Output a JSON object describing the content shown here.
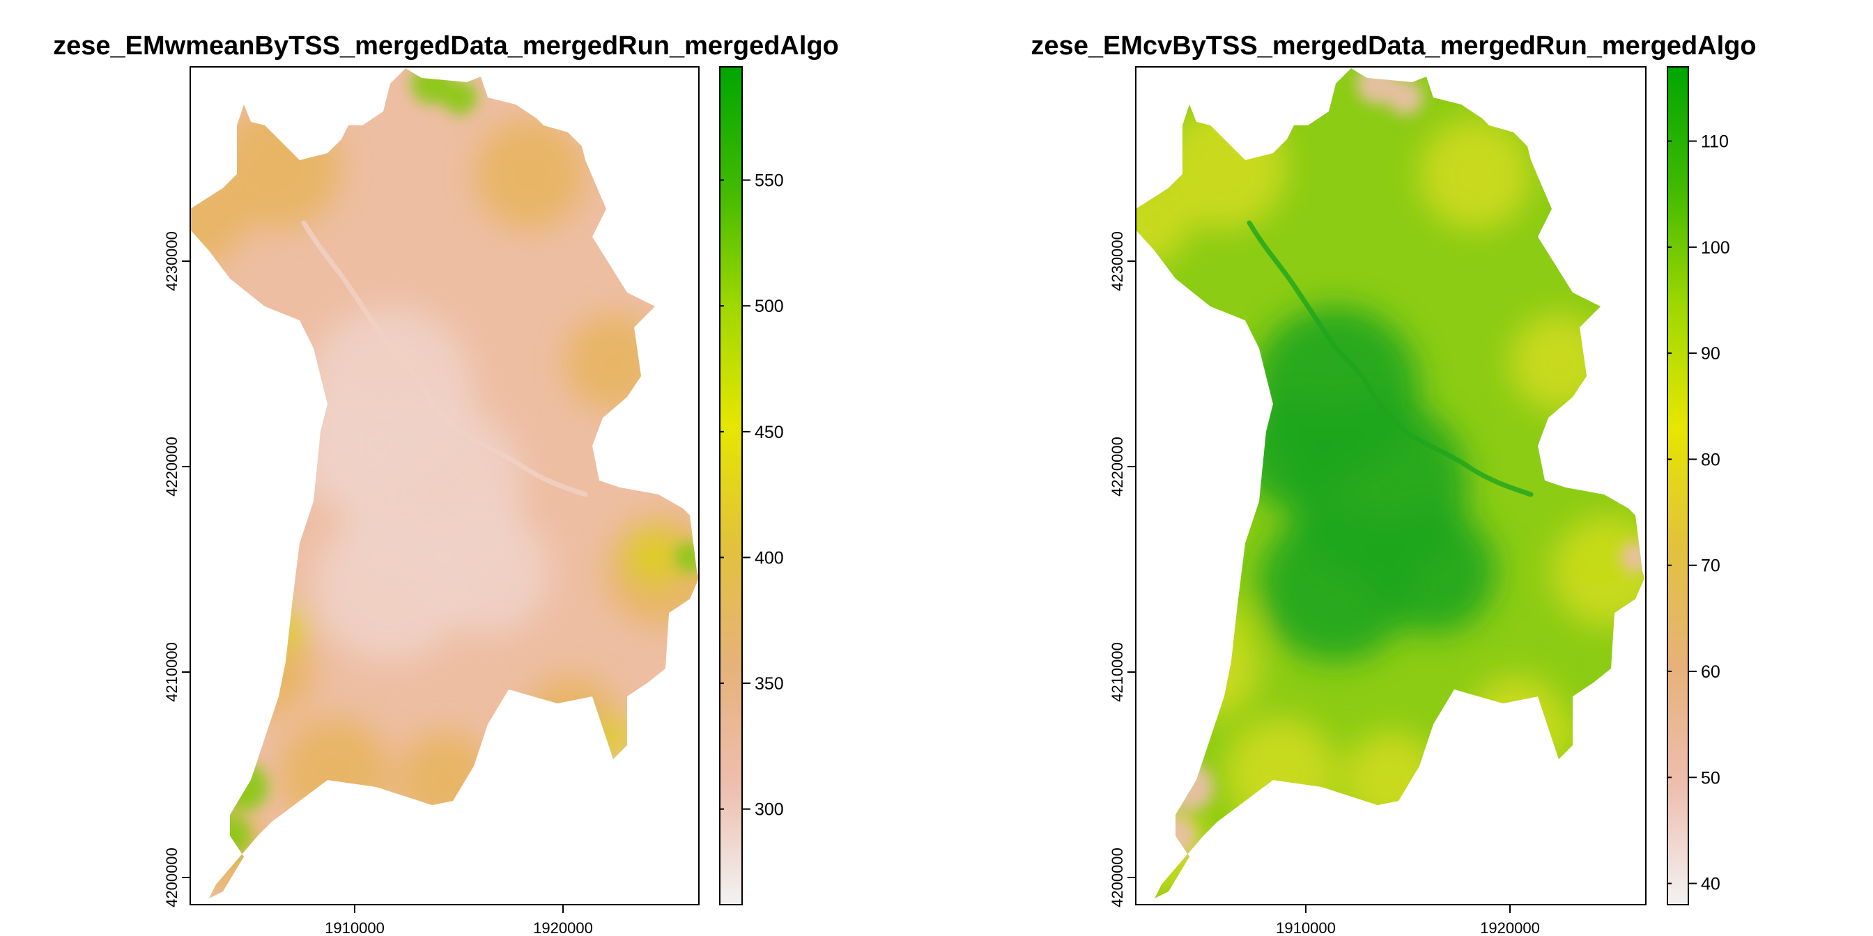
{
  "chart_data": [
    {
      "type": "heatmap",
      "title": "zese_EMwmeanByTSS_mergedData_mergedRun_mergedAlgo",
      "x_ticks": [
        "1910000",
        "1920000"
      ],
      "x_tick_values": [
        1910000,
        1920000
      ],
      "y_ticks": [
        "4200000",
        "4210000",
        "4220000",
        "4230000"
      ],
      "y_tick_values": [
        4200000,
        4210000,
        4220000,
        4230000
      ],
      "xlim": [
        1901900,
        1926300
      ],
      "ylim": [
        4198800,
        4239600
      ],
      "legend": {
        "placement": "right",
        "ticks": [
          "300",
          "350",
          "400",
          "450",
          "500",
          "550"
        ],
        "tick_values": [
          300,
          350,
          400,
          450,
          500,
          550
        ],
        "range": [
          262,
          595
        ],
        "colors": [
          "#f2f2f2",
          "#eebeae",
          "#e6b27a",
          "#e2c23c",
          "#e6e600",
          "#9fd800",
          "#3fba00",
          "#00a600"
        ]
      },
      "fill": {
        "base": "#eebea3",
        "outer": "#e6b45c",
        "center": "#f0d2c6",
        "high": "#8cc818",
        "yellow": "#dcd214"
      }
    },
    {
      "type": "heatmap",
      "title": "zese_EMcvByTSS_mergedData_mergedRun_mergedAlgo",
      "x_ticks": [
        "1910000",
        "1920000"
      ],
      "x_tick_values": [
        1910000,
        1920000
      ],
      "y_ticks": [
        "4200000",
        "4210000",
        "4220000",
        "4230000"
      ],
      "y_tick_values": [
        4200000,
        4210000,
        4220000,
        4230000
      ],
      "xlim": [
        1901900,
        1926300
      ],
      "ylim": [
        4198800,
        4239600
      ],
      "legend": {
        "placement": "right",
        "ticks": [
          "40",
          "50",
          "60",
          "70",
          "80",
          "90",
          "100",
          "110"
        ],
        "tick_values": [
          40,
          50,
          60,
          70,
          80,
          90,
          100,
          110
        ],
        "range": [
          38,
          117
        ],
        "colors": [
          "#f2f2f2",
          "#eebeae",
          "#e6b27a",
          "#e2c23c",
          "#e6e600",
          "#9fd800",
          "#3fba00",
          "#00a600"
        ]
      },
      "fill": {
        "base": "#8ccc14",
        "outer": "#d4dc1c",
        "center": "#1ea51e",
        "high": "#e8c0a6",
        "yellow": "#c4dc14"
      }
    }
  ]
}
